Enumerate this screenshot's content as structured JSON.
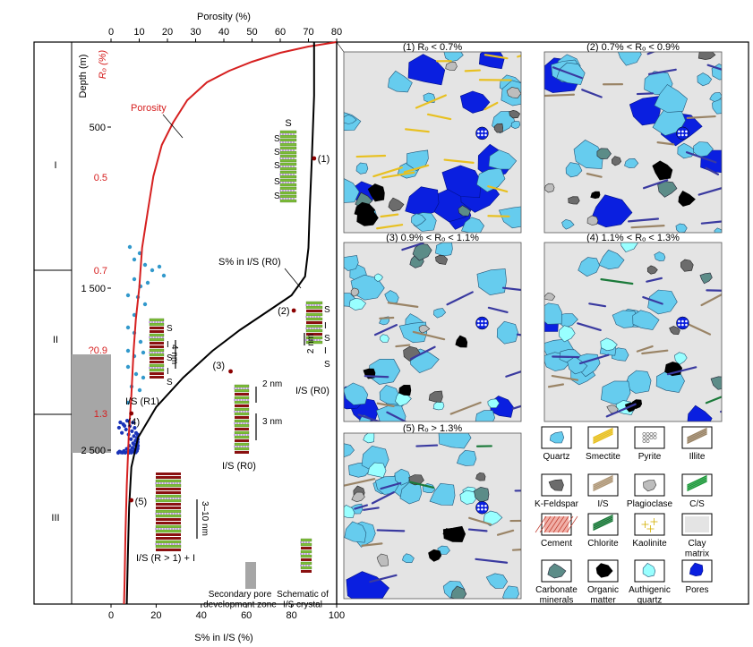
{
  "axes": {
    "top_title": "Porosity (%)",
    "top_ticks": [
      "0",
      "10",
      "20",
      "30",
      "40",
      "50",
      "60",
      "70",
      "80"
    ],
    "bottom_title": "S% in I/S (%)",
    "bottom_ticks": [
      "0",
      "20",
      "40",
      "60",
      "80",
      "100"
    ],
    "depth_title": "Depth (m)",
    "depth_ticks": [
      "500",
      "1 500",
      "2 500"
    ],
    "ro_title": "Rₒ (%)",
    "ro_ticks": [
      "0.5",
      "0.7",
      "?0.9",
      "1.3"
    ]
  },
  "stages": [
    "I",
    "II",
    "III"
  ],
  "curves": {
    "porosity_label": "Porosity",
    "s_label": "S% in I/S (R0)",
    "porosity": [
      [
        80,
        0
      ],
      [
        70,
        5
      ],
      [
        60,
        12
      ],
      [
        50,
        22
      ],
      [
        42,
        32
      ],
      [
        34,
        45
      ],
      [
        27,
        65
      ],
      [
        22,
        90
      ],
      [
        18,
        115
      ],
      [
        15,
        150
      ],
      [
        13,
        190
      ],
      [
        11,
        230
      ],
      [
        10,
        275
      ],
      [
        8.8,
        310
      ],
      [
        8,
        345
      ],
      [
        7.2,
        395
      ],
      [
        6.3,
        440
      ],
      [
        5.6,
        495
      ],
      [
        5.1,
        550
      ],
      [
        4.8,
        605
      ],
      [
        4.6,
        628
      ]
    ],
    "s_in_is": [
      [
        90,
        0
      ],
      [
        90,
        60
      ],
      [
        89,
        130
      ],
      [
        88,
        190
      ],
      [
        87.5,
        230
      ],
      [
        86,
        262
      ],
      [
        80,
        283
      ],
      [
        70,
        300
      ],
      [
        57,
        322
      ],
      [
        45,
        345
      ],
      [
        32,
        375
      ],
      [
        20,
        408
      ],
      [
        12,
        442
      ],
      [
        9,
        475
      ],
      [
        8,
        520
      ],
      [
        7.5,
        570
      ],
      [
        7,
        628
      ]
    ]
  },
  "markers": [
    {
      "label": "(1)",
      "s": 90,
      "depth": 130
    },
    {
      "label": "(2)",
      "s": 81,
      "depth": 300
    },
    {
      "label": "(3)",
      "s": 53,
      "depth": 368
    },
    {
      "label": "(4)",
      "s": 9,
      "depth": 415
    },
    {
      "label": "(5)",
      "s": 9,
      "depth": 512
    }
  ],
  "annotations": {
    "s_top": "S",
    "s_letter": "S",
    "i_letter": "I",
    "is_r1": "I/S (R1)",
    "is_r0_a": "I/S (R0)",
    "is_r0_b": "I/S (R0)",
    "is_r_gt1": "I/S (R > 1) + I",
    "dim_4nm": "4 nm",
    "dim_2nm_a": "2 nm",
    "dim_2nm_b": "2 nm",
    "dim_3nm": "3 nm",
    "dim_3_10nm": "3–10 nm",
    "legend_zone": "Secondary pore\ndevelopment zone",
    "legend_schematic": "Schematic of\nI/S crystal"
  },
  "panels": [
    {
      "title": "(1) Rₒ < 0.7%"
    },
    {
      "title": "(2) 0.7% < Rₒ < 0.9%"
    },
    {
      "title": "(3) 0.9% < Rₒ < 1.1%"
    },
    {
      "title": "(4) 1.1% < Rₒ < 1.3%"
    },
    {
      "title": "(5) Rₒ > 1.3%"
    }
  ],
  "legend": [
    {
      "name": "Quartz",
      "icon": "quartz-icon"
    },
    {
      "name": "Smectite",
      "icon": "smectite-icon"
    },
    {
      "name": "Pyrite",
      "icon": "pyrite-icon"
    },
    {
      "name": "Illite",
      "icon": "illite-icon"
    },
    {
      "name": "K-Feldspar",
      "icon": "k-feldspar-icon"
    },
    {
      "name": "I/S",
      "icon": "illite-smectite-icon"
    },
    {
      "name": "Plagioclase",
      "icon": "plagioclase-icon"
    },
    {
      "name": "C/S",
      "icon": "chlorite-smectite-icon"
    },
    {
      "name": "Cement",
      "icon": "cement-icon"
    },
    {
      "name": "Chlorite",
      "icon": "chlorite-icon"
    },
    {
      "name": "Kaolinite",
      "icon": "kaolinite-icon"
    },
    {
      "name": "Clay\nmatrix",
      "icon": "clay-matrix-icon"
    },
    {
      "name": "Carbonate\nminerals",
      "icon": "carbonate-icon"
    },
    {
      "name": "Organic\nmatter",
      "icon": "organic-matter-icon"
    },
    {
      "name": "Authigenic\nquartz",
      "icon": "authigenic-quartz-icon"
    },
    {
      "name": "Pores",
      "icon": "pores-icon"
    }
  ],
  "colors": {
    "quartz": "#66ccee",
    "authigenic": "#99ffff",
    "pores": "#0a1fe0",
    "matrix": "#e4e4e4",
    "porosity_curve": "#d62020",
    "carbonate": "#5c8c88",
    "kfeldspar": "#6c6c6c",
    "plagioclase": "#bdbdbd",
    "chlorite": "#1b7a3a",
    "cement": "#f1b0a8",
    "smectite": "#e8c020",
    "illite": "#9a8466",
    "scatter": "#3399cc",
    "scatter_dense": "#1a33b8",
    "zone": "#a6a6a6"
  }
}
